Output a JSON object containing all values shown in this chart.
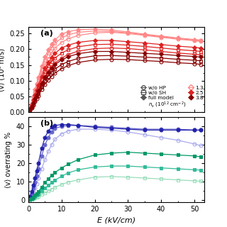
{
  "E_points": [
    0.5,
    1.0,
    1.5,
    2.0,
    2.5,
    3.0,
    4.0,
    5.0,
    6.0,
    7.0,
    8.0,
    10.0,
    12.0,
    15.0,
    20.0,
    25.0,
    30.0,
    35.0,
    40.0,
    45.0,
    50.0,
    52.0
  ],
  "panel_a": {
    "ylabel": "⟨v⟩ (10⁶ m/s)",
    "ylim": [
      0.0,
      0.27
    ],
    "yticks": [
      0.0,
      0.05,
      0.1,
      0.15,
      0.2,
      0.25
    ],
    "wo_HP_1p3": [
      0.01,
      0.022,
      0.04,
      0.058,
      0.074,
      0.09,
      0.122,
      0.15,
      0.17,
      0.188,
      0.203,
      0.222,
      0.233,
      0.244,
      0.252,
      0.254,
      0.25,
      0.244,
      0.238,
      0.232,
      0.227,
      0.225
    ],
    "wo_HP_2p5": [
      0.008,
      0.017,
      0.03,
      0.044,
      0.056,
      0.068,
      0.092,
      0.114,
      0.13,
      0.144,
      0.156,
      0.172,
      0.183,
      0.194,
      0.202,
      0.204,
      0.202,
      0.198,
      0.193,
      0.188,
      0.184,
      0.182
    ],
    "wo_HP_3p8": [
      0.006,
      0.013,
      0.023,
      0.033,
      0.043,
      0.053,
      0.072,
      0.089,
      0.102,
      0.114,
      0.124,
      0.138,
      0.148,
      0.158,
      0.166,
      0.168,
      0.167,
      0.164,
      0.161,
      0.157,
      0.154,
      0.152
    ],
    "wo_SH_1p3": [
      0.012,
      0.026,
      0.046,
      0.066,
      0.084,
      0.102,
      0.136,
      0.165,
      0.187,
      0.204,
      0.218,
      0.236,
      0.246,
      0.254,
      0.258,
      0.257,
      0.252,
      0.246,
      0.24,
      0.234,
      0.229,
      0.227
    ],
    "wo_SH_2p5": [
      0.009,
      0.02,
      0.035,
      0.05,
      0.064,
      0.078,
      0.104,
      0.128,
      0.146,
      0.16,
      0.172,
      0.188,
      0.198,
      0.208,
      0.215,
      0.216,
      0.213,
      0.209,
      0.204,
      0.199,
      0.195,
      0.193
    ],
    "wo_SH_3p8": [
      0.007,
      0.015,
      0.027,
      0.038,
      0.049,
      0.06,
      0.08,
      0.099,
      0.114,
      0.126,
      0.137,
      0.151,
      0.161,
      0.171,
      0.179,
      0.18,
      0.178,
      0.175,
      0.172,
      0.168,
      0.165,
      0.163
    ],
    "full_1p3": [
      0.013,
      0.028,
      0.05,
      0.072,
      0.09,
      0.11,
      0.146,
      0.176,
      0.198,
      0.216,
      0.23,
      0.248,
      0.256,
      0.262,
      0.264,
      0.261,
      0.255,
      0.248,
      0.242,
      0.236,
      0.231,
      0.229
    ],
    "full_2p5": [
      0.01,
      0.022,
      0.038,
      0.055,
      0.07,
      0.085,
      0.114,
      0.14,
      0.158,
      0.174,
      0.187,
      0.204,
      0.213,
      0.222,
      0.228,
      0.228,
      0.224,
      0.22,
      0.215,
      0.21,
      0.206,
      0.204
    ],
    "full_3p8": [
      0.008,
      0.017,
      0.03,
      0.043,
      0.055,
      0.067,
      0.09,
      0.11,
      0.126,
      0.139,
      0.151,
      0.166,
      0.176,
      0.186,
      0.193,
      0.193,
      0.19,
      0.187,
      0.184,
      0.18,
      0.177,
      0.175
    ],
    "col_1p3": "#FF8888",
    "col_2p5": "#DD2222",
    "col_3p8": "#880000"
  },
  "panel_b": {
    "ylabel": "⟨v⟩ overrating %",
    "ylim": [
      -1,
      45
    ],
    "yticks": [
      0,
      10,
      20,
      30,
      40
    ],
    "wo_HP_1p3_b": [
      1.0,
      2.5,
      4.5,
      6.5,
      9.0,
      12.0,
      17.0,
      22.0,
      26.5,
      30.0,
      33.0,
      36.0,
      37.5,
      38.5,
      38.5,
      38.0,
      37.0,
      35.5,
      34.0,
      32.5,
      30.5,
      29.5
    ],
    "wo_HP_2p5_b": [
      1.5,
      3.5,
      6.5,
      9.5,
      13.0,
      17.0,
      24.0,
      30.0,
      34.0,
      37.0,
      39.0,
      40.0,
      40.5,
      40.5,
      40.0,
      39.5,
      39.0,
      38.5,
      38.5,
      38.5,
      38.0,
      38.0
    ],
    "wo_HP_3p8_b": [
      2.0,
      4.5,
      8.0,
      12.0,
      16.0,
      20.0,
      28.0,
      34.0,
      37.5,
      39.5,
      40.5,
      41.0,
      41.0,
      40.5,
      39.5,
      39.0,
      38.5,
      38.0,
      38.0,
      38.0,
      38.0,
      38.0
    ],
    "wo_SH_1p3_b": [
      0.2,
      0.4,
      0.8,
      1.2,
      1.6,
      2.0,
      3.0,
      4.0,
      5.0,
      6.0,
      7.0,
      8.5,
      9.8,
      11.0,
      12.5,
      12.8,
      12.5,
      12.0,
      11.5,
      11.0,
      10.5,
      10.3
    ],
    "wo_SH_2p5_b": [
      0.3,
      0.7,
      1.3,
      1.9,
      2.6,
      3.3,
      5.0,
      6.5,
      8.0,
      9.5,
      10.8,
      13.0,
      14.8,
      16.5,
      18.0,
      18.5,
      18.5,
      18.0,
      17.5,
      17.0,
      16.5,
      16.3
    ],
    "wo_SH_3p8_b": [
      0.4,
      1.0,
      1.8,
      2.7,
      3.7,
      4.7,
      7.0,
      9.5,
      11.5,
      13.5,
      15.0,
      17.5,
      19.5,
      22.0,
      24.5,
      25.5,
      26.0,
      25.5,
      25.0,
      24.5,
      24.0,
      23.5
    ],
    "col_b_open": "#AAAAEE",
    "col_b_mid": "#6666CC",
    "col_b_fill": "#2222AA",
    "col_g_open": "#99DDBB",
    "col_g_mid": "#33BB99",
    "col_g_fill": "#009966"
  },
  "xlim": [
    0,
    53
  ],
  "xticks": [
    0,
    10,
    20,
    30,
    40,
    50
  ],
  "xlabel": "E (kV/cm)"
}
